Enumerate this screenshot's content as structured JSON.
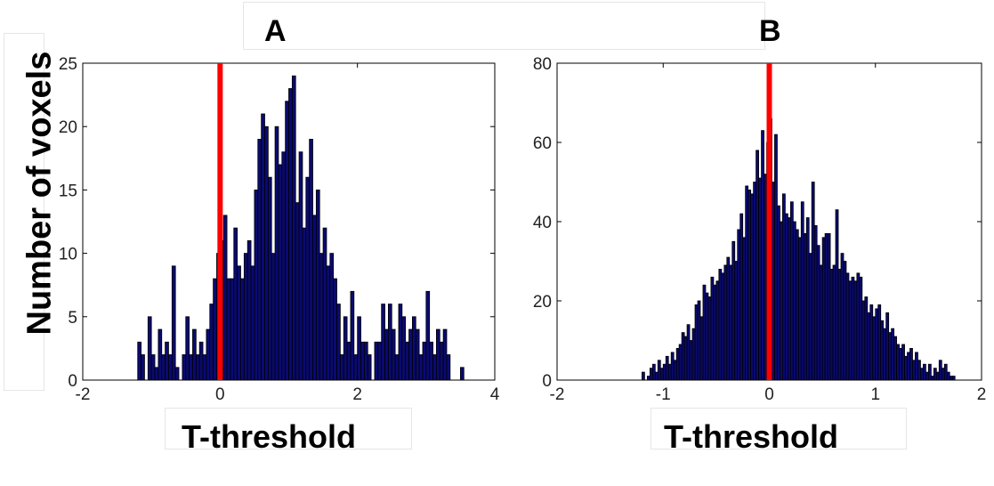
{
  "ylabel": "Number of voxels",
  "chart_data": [
    {
      "type": "bar",
      "panel": "A",
      "xlabel": "T-threshold",
      "xlim": [
        -2,
        4
      ],
      "ylim": [
        0,
        25
      ],
      "xticks": [
        "-2",
        "0",
        "2",
        "4"
      ],
      "yticks": [
        "0",
        "5",
        "10",
        "15",
        "20",
        "25"
      ],
      "bin_width": 0.05,
      "bins": [
        [
          -1.2,
          3
        ],
        [
          -1.15,
          2
        ],
        [
          -1.05,
          5
        ],
        [
          -1,
          2
        ],
        [
          -0.95,
          1
        ],
        [
          -0.9,
          4
        ],
        [
          -0.85,
          2
        ],
        [
          -0.8,
          3
        ],
        [
          -0.75,
          2
        ],
        [
          -0.7,
          9
        ],
        [
          -0.65,
          1
        ],
        [
          -0.55,
          2
        ],
        [
          -0.5,
          5
        ],
        [
          -0.45,
          2
        ],
        [
          -0.4,
          4
        ],
        [
          -0.35,
          2
        ],
        [
          -0.3,
          3
        ],
        [
          -0.25,
          2
        ],
        [
          -0.2,
          4
        ],
        [
          -0.15,
          6
        ],
        [
          -0.1,
          8
        ],
        [
          -0.05,
          10
        ],
        [
          0,
          11
        ],
        [
          0.05,
          13
        ],
        [
          0.1,
          8
        ],
        [
          0.15,
          8
        ],
        [
          0.2,
          12
        ],
        [
          0.25,
          9
        ],
        [
          0.3,
          8
        ],
        [
          0.35,
          10
        ],
        [
          0.4,
          11
        ],
        [
          0.45,
          9
        ],
        [
          0.5,
          15
        ],
        [
          0.55,
          19
        ],
        [
          0.6,
          21
        ],
        [
          0.65,
          20
        ],
        [
          0.7,
          16
        ],
        [
          0.75,
          10
        ],
        [
          0.8,
          20
        ],
        [
          0.85,
          17
        ],
        [
          0.9,
          18
        ],
        [
          0.95,
          22
        ],
        [
          1,
          23
        ],
        [
          1.05,
          24
        ],
        [
          1.1,
          14
        ],
        [
          1.15,
          18
        ],
        [
          1.2,
          12
        ],
        [
          1.25,
          16
        ],
        [
          1.3,
          19
        ],
        [
          1.35,
          13
        ],
        [
          1.4,
          15
        ],
        [
          1.45,
          10
        ],
        [
          1.5,
          12
        ],
        [
          1.55,
          9
        ],
        [
          1.6,
          10
        ],
        [
          1.65,
          8
        ],
        [
          1.7,
          6
        ],
        [
          1.75,
          2
        ],
        [
          1.8,
          5
        ],
        [
          1.85,
          3
        ],
        [
          1.9,
          7
        ],
        [
          1.95,
          2
        ],
        [
          2,
          5
        ],
        [
          2.05,
          3
        ],
        [
          2.1,
          3
        ],
        [
          2.15,
          2
        ],
        [
          2.25,
          3
        ],
        [
          2.3,
          3
        ],
        [
          2.35,
          6
        ],
        [
          2.4,
          4
        ],
        [
          2.45,
          6
        ],
        [
          2.5,
          4
        ],
        [
          2.55,
          2
        ],
        [
          2.6,
          6
        ],
        [
          2.65,
          5
        ],
        [
          2.7,
          3
        ],
        [
          2.75,
          4
        ],
        [
          2.8,
          5
        ],
        [
          2.85,
          4
        ],
        [
          2.9,
          2
        ],
        [
          2.95,
          3
        ],
        [
          3,
          7
        ],
        [
          3.05,
          3
        ],
        [
          3.1,
          2
        ],
        [
          3.15,
          4
        ],
        [
          3.2,
          3
        ],
        [
          3.25,
          4
        ],
        [
          3.3,
          2
        ],
        [
          3.5,
          1
        ]
      ],
      "threshold_line": 0,
      "colors": {
        "bar": "#0a0a70",
        "bar_edge": "#000000",
        "threshold": "#ff0000"
      }
    },
    {
      "type": "bar",
      "panel": "B",
      "xlabel": "T-threshold",
      "xlim": [
        -2,
        2
      ],
      "ylim": [
        0,
        80
      ],
      "xticks": [
        "-2",
        "-1",
        "0",
        "1",
        "2"
      ],
      "yticks": [
        "0",
        "20",
        "40",
        "60",
        "80"
      ],
      "bin_width": 0.025,
      "bins": [
        [
          -1.2,
          2
        ],
        [
          -1.15,
          1
        ],
        [
          -1.125,
          3
        ],
        [
          -1.1,
          4
        ],
        [
          -1.075,
          2
        ],
        [
          -1.05,
          5
        ],
        [
          -1.025,
          3
        ],
        [
          -1,
          4
        ],
        [
          -0.975,
          6
        ],
        [
          -0.95,
          4
        ],
        [
          -0.925,
          7
        ],
        [
          -0.9,
          5
        ],
        [
          -0.875,
          8
        ],
        [
          -0.85,
          9
        ],
        [
          -0.825,
          12
        ],
        [
          -0.8,
          11
        ],
        [
          -0.775,
          14
        ],
        [
          -0.75,
          10
        ],
        [
          -0.725,
          13
        ],
        [
          -0.7,
          19
        ],
        [
          -0.675,
          20
        ],
        [
          -0.65,
          16
        ],
        [
          -0.625,
          24
        ],
        [
          -0.6,
          22
        ],
        [
          -0.575,
          21
        ],
        [
          -0.55,
          26
        ],
        [
          -0.525,
          24
        ],
        [
          -0.5,
          25
        ],
        [
          -0.475,
          28
        ],
        [
          -0.45,
          27
        ],
        [
          -0.425,
          29
        ],
        [
          -0.4,
          31
        ],
        [
          -0.375,
          29
        ],
        [
          -0.35,
          35
        ],
        [
          -0.325,
          30
        ],
        [
          -0.3,
          38
        ],
        [
          -0.275,
          42
        ],
        [
          -0.25,
          36
        ],
        [
          -0.225,
          49
        ],
        [
          -0.2,
          48
        ],
        [
          -0.175,
          47
        ],
        [
          -0.15,
          50
        ],
        [
          -0.125,
          58
        ],
        [
          -0.1,
          51
        ],
        [
          -0.075,
          63
        ],
        [
          -0.05,
          52
        ],
        [
          -0.025,
          60
        ],
        [
          0,
          66
        ],
        [
          0.025,
          50
        ],
        [
          0.05,
          62
        ],
        [
          0.075,
          44
        ],
        [
          0.1,
          40
        ],
        [
          0.125,
          47
        ],
        [
          0.15,
          42
        ],
        [
          0.175,
          41
        ],
        [
          0.2,
          45
        ],
        [
          0.225,
          40
        ],
        [
          0.25,
          38
        ],
        [
          0.275,
          36
        ],
        [
          0.3,
          45
        ],
        [
          0.325,
          37
        ],
        [
          0.35,
          41
        ],
        [
          0.375,
          32
        ],
        [
          0.4,
          50
        ],
        [
          0.425,
          39
        ],
        [
          0.45,
          34
        ],
        [
          0.475,
          29
        ],
        [
          0.5,
          36
        ],
        [
          0.525,
          37
        ],
        [
          0.55,
          37
        ],
        [
          0.575,
          28
        ],
        [
          0.6,
          29
        ],
        [
          0.625,
          43
        ],
        [
          0.65,
          28
        ],
        [
          0.675,
          32
        ],
        [
          0.7,
          30
        ],
        [
          0.725,
          27
        ],
        [
          0.75,
          25
        ],
        [
          0.775,
          26
        ],
        [
          0.8,
          25
        ],
        [
          0.825,
          27
        ],
        [
          0.85,
          26
        ],
        [
          0.875,
          20
        ],
        [
          0.9,
          21
        ],
        [
          0.925,
          17
        ],
        [
          0.95,
          19
        ],
        [
          0.975,
          16
        ],
        [
          1,
          18
        ],
        [
          1.025,
          19
        ],
        [
          1.05,
          15
        ],
        [
          1.075,
          13
        ],
        [
          1.1,
          17
        ],
        [
          1.125,
          12
        ],
        [
          1.15,
          13
        ],
        [
          1.175,
          11
        ],
        [
          1.2,
          9
        ],
        [
          1.225,
          8
        ],
        [
          1.25,
          9
        ],
        [
          1.275,
          6
        ],
        [
          1.3,
          7
        ],
        [
          1.325,
          8
        ],
        [
          1.35,
          5
        ],
        [
          1.375,
          7
        ],
        [
          1.4,
          5
        ],
        [
          1.425,
          3
        ],
        [
          1.45,
          4
        ],
        [
          1.475,
          2
        ],
        [
          1.5,
          4
        ],
        [
          1.525,
          1
        ],
        [
          1.55,
          3
        ],
        [
          1.575,
          2
        ],
        [
          1.6,
          5
        ],
        [
          1.625,
          3
        ],
        [
          1.65,
          4
        ],
        [
          1.675,
          2
        ],
        [
          1.7,
          1
        ],
        [
          1.725,
          1
        ]
      ],
      "threshold_line": 0,
      "colors": {
        "bar": "#0a0a70",
        "bar_edge": "#000000",
        "threshold": "#ff0000"
      }
    }
  ]
}
